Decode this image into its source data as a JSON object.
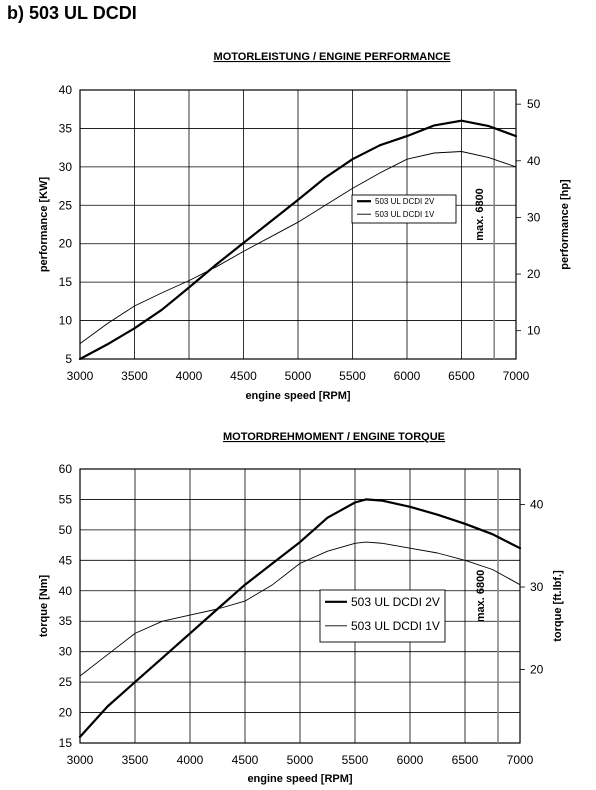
{
  "page": {
    "heading": "b) 503 UL DCDI"
  },
  "chart_data": [
    {
      "type": "line",
      "title": "MOTORLEISTUNG / ENGINE PERFORMANCE",
      "xlabel": "engine speed [RPM]",
      "ylabel": "performance [KW]",
      "y2label": "performance [hp]",
      "xlim": [
        3000,
        7000
      ],
      "ylim": [
        5,
        40
      ],
      "y2lim": [
        5.0,
        52.5
      ],
      "xticks": [
        3000,
        3500,
        4000,
        4500,
        5000,
        5500,
        6000,
        6500,
        7000
      ],
      "yticks": [
        5,
        10,
        15,
        20,
        25,
        30,
        35,
        40
      ],
      "y2ticks": [
        10,
        20,
        30,
        40,
        50
      ],
      "grid": true,
      "legend_position": "right",
      "series": [
        {
          "name": "503 UL DCDI 2V",
          "style": "thick",
          "x": [
            3000,
            3250,
            3500,
            3750,
            4000,
            4250,
            4500,
            4750,
            5000,
            5250,
            5500,
            5750,
            6000,
            6250,
            6500,
            6750,
            7000
          ],
          "y": [
            5.0,
            6.9,
            9.0,
            11.4,
            14.3,
            17.3,
            20.1,
            22.9,
            25.7,
            28.6,
            31.0,
            32.8,
            34.0,
            35.4,
            36.0,
            35.3,
            34.0
          ]
        },
        {
          "name": "503 UL DCDI 1V",
          "style": "thin",
          "x": [
            3000,
            3250,
            3500,
            3750,
            4000,
            4250,
            4500,
            4750,
            5000,
            5250,
            5500,
            5750,
            6000,
            6250,
            6500,
            6750,
            7000
          ],
          "y": [
            7.0,
            9.6,
            11.9,
            13.6,
            15.2,
            17.0,
            19.0,
            20.9,
            22.8,
            25.0,
            27.2,
            29.2,
            31.0,
            31.8,
            32.0,
            31.2,
            30.0
          ]
        }
      ],
      "annotations": [
        {
          "text": "max. 6800",
          "x": 6800
        }
      ]
    },
    {
      "type": "line",
      "title": "MOTORDREHMOMENT / ENGINE TORQUE",
      "xlabel": "engine speed [RPM]",
      "ylabel": "torque [Nm]",
      "y2label": "torque [ft.lbf.]",
      "xlim": [
        3000,
        7000
      ],
      "ylim": [
        15,
        60
      ],
      "y2lim": [
        11.1,
        44.3
      ],
      "xticks": [
        3000,
        3500,
        4000,
        4500,
        5000,
        5500,
        6000,
        6500,
        7000
      ],
      "yticks": [
        15,
        20,
        25,
        30,
        35,
        40,
        45,
        50,
        55,
        60
      ],
      "y2ticks": [
        20,
        30,
        40
      ],
      "grid": true,
      "legend_position": "right",
      "series": [
        {
          "name": "503 UL DCDI 2V",
          "style": "thick",
          "x": [
            3000,
            3250,
            3500,
            3750,
            4000,
            4250,
            4500,
            4750,
            5000,
            5250,
            5500,
            5600,
            5750,
            6000,
            6250,
            6500,
            6750,
            7000
          ],
          "y": [
            16.0,
            21.0,
            25.0,
            29.0,
            33.0,
            37.0,
            41.0,
            44.5,
            48.0,
            52.0,
            54.5,
            55.0,
            54.8,
            53.8,
            52.5,
            51.0,
            49.3,
            47.0
          ]
        },
        {
          "name": "503 UL DCDI 1V",
          "style": "thin",
          "x": [
            3000,
            3250,
            3500,
            3750,
            4000,
            4250,
            4500,
            4750,
            5000,
            5250,
            5500,
            5600,
            5750,
            6000,
            6250,
            6500,
            6750,
            7000
          ],
          "y": [
            26.0,
            29.5,
            33.0,
            35.0,
            36.0,
            37.0,
            38.3,
            41.0,
            44.5,
            46.5,
            47.8,
            48.0,
            47.8,
            47.0,
            46.2,
            45.0,
            43.5,
            41.0
          ]
        }
      ],
      "annotations": [
        {
          "text": "max. 6800",
          "x": 6800
        }
      ]
    }
  ]
}
